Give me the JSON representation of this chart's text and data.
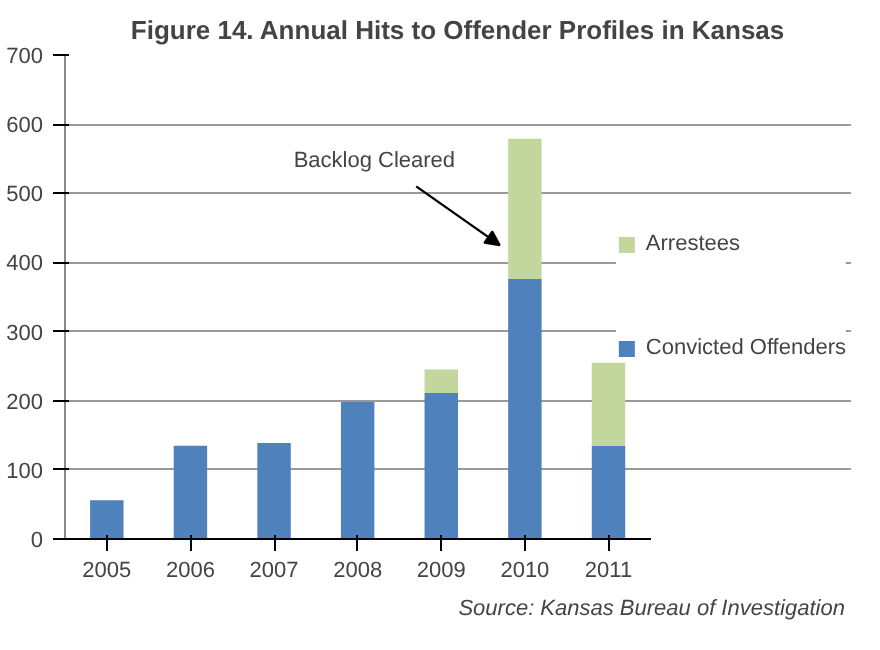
{
  "chart_data": {
    "type": "bar",
    "title": "Figure 14. Annual Hits to Offender Profiles in Kansas",
    "stacked": true,
    "categories": [
      "2005",
      "2006",
      "2007",
      "2008",
      "2009",
      "2010",
      "2011"
    ],
    "series": [
      {
        "name": "Convicted Offenders",
        "color": "#4f81bd",
        "values": [
          56,
          135,
          139,
          198,
          211,
          376,
          135
        ]
      },
      {
        "name": "Arrestees",
        "color": "#c3d69b",
        "values": [
          null,
          null,
          null,
          null,
          34,
          203,
          120
        ]
      }
    ],
    "ylim": [
      0,
      700
    ],
    "yticks": [
      0,
      100,
      200,
      300,
      400,
      500,
      600,
      700
    ],
    "grid": "y",
    "legend": "right",
    "annotations": [
      "Backlog Cleared",
      "Source:  Kansas Bureau of Investigation"
    ]
  }
}
